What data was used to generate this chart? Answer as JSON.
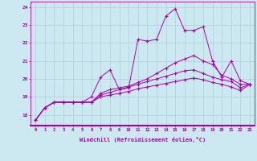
{
  "xlabel": "Windchill (Refroidissement éolien,°C)",
  "bg_color": "#cce8f0",
  "grid_color": "#b0cfd8",
  "line_color": "#aa00aa",
  "xlim": [
    -0.5,
    23.5
  ],
  "ylim": [
    17.4,
    24.3
  ],
  "xticks": [
    0,
    1,
    2,
    3,
    4,
    5,
    6,
    7,
    8,
    9,
    10,
    11,
    12,
    13,
    14,
    15,
    16,
    17,
    18,
    19,
    20,
    21,
    22,
    23
  ],
  "yticks": [
    18,
    19,
    20,
    21,
    22,
    23,
    24
  ],
  "series": [
    [
      17.7,
      18.4,
      18.7,
      18.7,
      18.7,
      18.7,
      19.0,
      20.1,
      20.5,
      19.4,
      19.5,
      22.2,
      22.1,
      22.2,
      23.5,
      23.9,
      22.7,
      22.7,
      22.9,
      21.0,
      20.1,
      21.0,
      19.9,
      19.7
    ],
    [
      17.7,
      18.4,
      18.7,
      18.7,
      18.7,
      18.7,
      18.7,
      19.2,
      19.4,
      19.5,
      19.6,
      19.8,
      20.0,
      20.3,
      20.6,
      20.9,
      21.1,
      21.3,
      21.0,
      20.8,
      20.2,
      20.0,
      19.7,
      19.7
    ],
    [
      17.7,
      18.4,
      18.7,
      18.7,
      18.7,
      18.7,
      18.7,
      19.1,
      19.25,
      19.4,
      19.55,
      19.7,
      19.85,
      20.0,
      20.15,
      20.3,
      20.45,
      20.5,
      20.3,
      20.1,
      19.95,
      19.85,
      19.5,
      19.7
    ],
    [
      17.7,
      18.4,
      18.7,
      18.7,
      18.7,
      18.7,
      18.7,
      19.0,
      19.1,
      19.2,
      19.3,
      19.45,
      19.55,
      19.65,
      19.75,
      19.85,
      19.95,
      20.05,
      19.95,
      19.8,
      19.7,
      19.55,
      19.35,
      19.7
    ]
  ]
}
